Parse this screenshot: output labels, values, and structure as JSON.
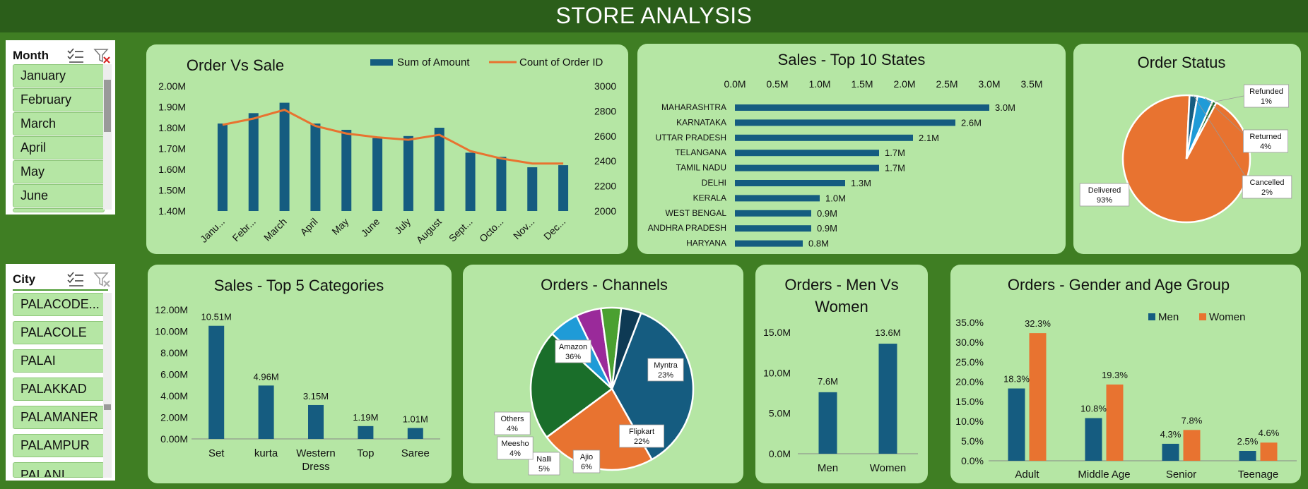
{
  "header": {
    "title": "STORE ANALYSIS"
  },
  "colors": {
    "blue": "#155c80",
    "orange": "#e87330",
    "panel": "#b5e6a4",
    "background": "#3f7e23",
    "header": "#2b5e1a"
  },
  "slicers": {
    "month": {
      "title": "Month",
      "items": [
        "January",
        "February",
        "March",
        "April",
        "May",
        "June"
      ]
    },
    "city": {
      "title": "City",
      "items": [
        "PALACODE...",
        "PALACOLE",
        "PALAI",
        "PALAKKAD",
        "PALAMANER",
        "PALAMPUR",
        "PALANI"
      ]
    }
  },
  "charts": {
    "order_vs_sale": {
      "type": "bar+line",
      "title": "Order Vs Sale",
      "categories": [
        "Janu...",
        "Febr...",
        "March",
        "April",
        "May",
        "June",
        "July",
        "August",
        "Sept...",
        "Octo...",
        "Nov...",
        "Dec..."
      ],
      "y_ticks": [
        "1.40M",
        "1.50M",
        "1.60M",
        "1.70M",
        "1.80M",
        "1.90M",
        "2.00M"
      ],
      "y2_ticks": [
        "2000",
        "2200",
        "2400",
        "2600",
        "2800",
        "3000"
      ],
      "ylim": [
        1.4,
        2.0
      ],
      "y2lim": [
        2000,
        3000
      ],
      "series": [
        {
          "name": "Sum of Amount",
          "kind": "bar",
          "values": [
            1.82,
            1.87,
            1.92,
            1.82,
            1.79,
            1.75,
            1.76,
            1.8,
            1.68,
            1.66,
            1.61,
            1.62
          ]
        },
        {
          "name": "Count of Order ID",
          "kind": "line",
          "values": [
            2690,
            2740,
            2810,
            2680,
            2620,
            2590,
            2570,
            2610,
            2480,
            2420,
            2380,
            2380
          ]
        }
      ]
    },
    "top_states": {
      "type": "bar",
      "orientation": "horizontal",
      "title": "Sales - Top 10 States",
      "categories": [
        "MAHARASHTRA",
        "KARNATAKA",
        "UTTAR PRADESH",
        "TELANGANA",
        "TAMIL NADU",
        "DELHI",
        "KERALA",
        "WEST BENGAL",
        "ANDHRA PRADESH",
        "HARYANA"
      ],
      "values": [
        3.0,
        2.6,
        2.1,
        1.7,
        1.7,
        1.3,
        1.0,
        0.9,
        0.9,
        0.8
      ],
      "labels": [
        "3.0M",
        "2.6M",
        "2.1M",
        "1.7M",
        "1.7M",
        "1.3M",
        "1.0M",
        "0.9M",
        "0.9M",
        "0.8M"
      ],
      "x_ticks": [
        "0.0M",
        "0.5M",
        "1.0M",
        "1.5M",
        "2.0M",
        "2.5M",
        "3.0M",
        "3.5M"
      ],
      "xlim": [
        0,
        3.5
      ]
    },
    "order_status": {
      "type": "pie",
      "title": "Order Status",
      "slices": [
        {
          "name": "Delivered",
          "value": 93,
          "label": "93%",
          "color": "#e87330"
        },
        {
          "name": "Cancelled",
          "value": 2,
          "label": "2%",
          "color": "#155c80"
        },
        {
          "name": "Returned",
          "value": 4,
          "label": "4%",
          "color": "#1f9bd7"
        },
        {
          "name": "Refunded",
          "value": 1,
          "label": "1%",
          "color": "#1e6b2a"
        }
      ]
    },
    "top_categories": {
      "type": "bar",
      "title": "Sales - Top 5 Categories",
      "categories": [
        "Set",
        "kurta",
        "Western Dress",
        "Top",
        "Saree"
      ],
      "values": [
        10.51,
        4.96,
        3.15,
        1.19,
        1.01
      ],
      "labels": [
        "10.51M",
        "4.96M",
        "3.15M",
        "1.19M",
        "1.01M"
      ],
      "y_ticks": [
        "0.00M",
        "2.00M",
        "4.00M",
        "6.00M",
        "8.00M",
        "10.00M",
        "12.00M"
      ],
      "ylim": [
        0,
        12
      ]
    },
    "channels": {
      "type": "pie",
      "title": "Orders - Channels",
      "slices": [
        {
          "name": "Amazon",
          "value": 36,
          "label": "36%",
          "color": "#155c80"
        },
        {
          "name": "Myntra",
          "value": 23,
          "label": "23%",
          "color": "#e87330"
        },
        {
          "name": "Flipkart",
          "value": 22,
          "label": "22%",
          "color": "#1a6e2a"
        },
        {
          "name": "Ajio",
          "value": 6,
          "label": "6%",
          "color": "#1f9bd7"
        },
        {
          "name": "Nalli",
          "value": 5,
          "label": "5%",
          "color": "#9a2a9a"
        },
        {
          "name": "Meesho",
          "value": 4,
          "label": "4%",
          "color": "#4aa030"
        },
        {
          "name": "Others",
          "value": 4,
          "label": "4%",
          "color": "#0e3a54"
        }
      ]
    },
    "men_vs_women": {
      "type": "bar",
      "title": "Orders - Men Vs Women",
      "title_lines": [
        "Orders - Men Vs",
        "Women"
      ],
      "categories": [
        "Men",
        "Women"
      ],
      "values": [
        7.6,
        13.6
      ],
      "labels": [
        "7.6M",
        "13.6M"
      ],
      "y_ticks": [
        "0.0M",
        "5.0M",
        "10.0M",
        "15.0M"
      ],
      "ylim": [
        0,
        15
      ]
    },
    "gender_age": {
      "type": "bar",
      "title": "Orders - Gender and Age Group",
      "categories": [
        "Adult",
        "Middle Age",
        "Senior",
        "Teenage"
      ],
      "y_ticks": [
        "0.0%",
        "5.0%",
        "10.0%",
        "15.0%",
        "20.0%",
        "25.0%",
        "30.0%",
        "35.0%"
      ],
      "ylim": [
        0,
        35
      ],
      "legend": "top-right",
      "series": [
        {
          "name": "Men",
          "values": [
            18.3,
            10.8,
            4.3,
            2.5
          ],
          "labels": [
            "18.3%",
            "10.8%",
            "4.3%",
            "2.5%"
          ]
        },
        {
          "name": "Women",
          "values": [
            32.3,
            19.3,
            7.8,
            4.6
          ],
          "labels": [
            "32.3%",
            "19.3%",
            "7.8%",
            "4.6%"
          ]
        }
      ]
    }
  }
}
